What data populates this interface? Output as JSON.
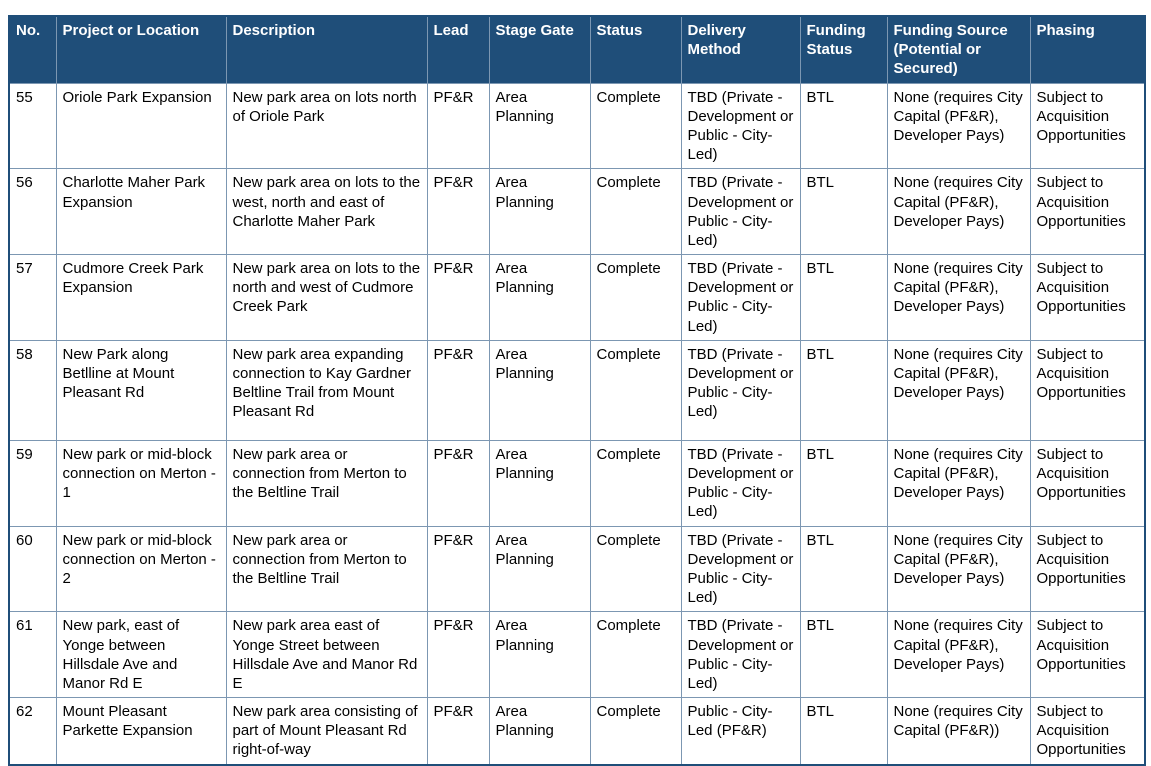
{
  "colors": {
    "header_background": "#1F4E79",
    "header_text": "#FFFFFF",
    "inner_border": "#7C97B2",
    "outer_border": "#1F4E79",
    "body_text": "#000000",
    "page_background": "#FFFFFF"
  },
  "table": {
    "columns": [
      {
        "key": "no",
        "label": "No."
      },
      {
        "key": "project",
        "label": "Project or Location"
      },
      {
        "key": "description",
        "label": "Description"
      },
      {
        "key": "lead",
        "label": "Lead"
      },
      {
        "key": "stage_gate",
        "label": "Stage Gate"
      },
      {
        "key": "status",
        "label": "Status"
      },
      {
        "key": "delivery_method",
        "label": "Delivery Method"
      },
      {
        "key": "funding_status",
        "label": "Funding Status"
      },
      {
        "key": "funding_source",
        "label": "Funding Source (Potential or Secured)"
      },
      {
        "key": "phasing",
        "label": "Phasing"
      }
    ],
    "rows": [
      {
        "no": "55",
        "project": "Oriole Park Expansion",
        "description": "New park area on lots north of Oriole Park",
        "lead": "PF&R",
        "stage_gate": "Area Planning",
        "status": "Complete",
        "delivery_method": "TBD (Private - Development or Public - City-Led)",
        "funding_status": "BTL",
        "funding_source": "None (requires City Capital (PF&R), Developer Pays)",
        "phasing": "Subject to Acquisition Opportunities"
      },
      {
        "no": "56",
        "project": "Charlotte Maher Park Expansion",
        "description": "New park area on lots to the west, north and east of Charlotte Maher Park",
        "lead": "PF&R",
        "stage_gate": "Area Planning",
        "status": "Complete",
        "delivery_method": "TBD (Private - Development or Public - City-Led)",
        "funding_status": "BTL",
        "funding_source": "None (requires City Capital (PF&R), Developer Pays)",
        "phasing": "Subject to Acquisition Opportunities"
      },
      {
        "no": "57",
        "project": "Cudmore Creek Park Expansion",
        "description": "New park area on lots to the north and west of Cudmore Creek Park",
        "lead": "PF&R",
        "stage_gate": "Area Planning",
        "status": "Complete",
        "delivery_method": "TBD (Private - Development or Public - City-Led)",
        "funding_status": "BTL",
        "funding_source": "None (requires City Capital (PF&R), Developer Pays)",
        "phasing": "Subject to Acquisition Opportunities"
      },
      {
        "no": "58",
        "project": "New Park along Betlline at Mount Pleasant Rd",
        "description": "New park area expanding connection to Kay Gardner Beltline Trail from Mount Pleasant Rd",
        "lead": "PF&R",
        "stage_gate": "Area Planning",
        "status": "Complete",
        "delivery_method": "TBD (Private - Development or Public - City-Led)",
        "funding_status": "BTL",
        "funding_source": "None (requires City Capital (PF&R), Developer Pays)",
        "phasing": "Subject to Acquisition Opportunities"
      },
      {
        "no": "59",
        "project": "New park or mid-block connection on Merton - 1",
        "description": "New park area or connection from Merton to the Beltline Trail",
        "lead": "PF&R",
        "stage_gate": "Area Planning",
        "status": "Complete",
        "delivery_method": "TBD (Private - Development or Public - City-Led)",
        "funding_status": "BTL",
        "funding_source": "None (requires City Capital (PF&R), Developer Pays)",
        "phasing": "Subject to Acquisition Opportunities"
      },
      {
        "no": "60",
        "project": "New park or mid-block connection on Merton - 2",
        "description": "New park area or connection from Merton to the Beltline Trail",
        "lead": "PF&R",
        "stage_gate": "Area Planning",
        "status": "Complete",
        "delivery_method": "TBD (Private - Development or Public - City-Led)",
        "funding_status": "BTL",
        "funding_source": "None (requires City Capital (PF&R), Developer Pays)",
        "phasing": "Subject to Acquisition Opportunities"
      },
      {
        "no": "61",
        "project": "New park, east of Yonge between Hillsdale Ave and Manor Rd E",
        "description": "New park area east of Yonge Street between Hillsdale Ave and Manor Rd E",
        "lead": "PF&R",
        "stage_gate": "Area Planning",
        "status": "Complete",
        "delivery_method": "TBD (Private - Development or Public - City-Led)",
        "funding_status": "BTL",
        "funding_source": "None (requires City Capital (PF&R), Developer Pays)",
        "phasing": "Subject to Acquisition Opportunities"
      },
      {
        "no": "62",
        "project": "Mount Pleasant Parkette Expansion",
        "description": "New park area consisting of part of Mount Pleasant Rd right-of-way",
        "lead": "PF&R",
        "stage_gate": "Area Planning",
        "status": "Complete",
        "delivery_method": "Public - City-Led (PF&R)",
        "funding_status": "BTL",
        "funding_source": "None (requires City Capital (PF&R))",
        "phasing": "Subject to Acquisition Opportunities"
      }
    ]
  }
}
